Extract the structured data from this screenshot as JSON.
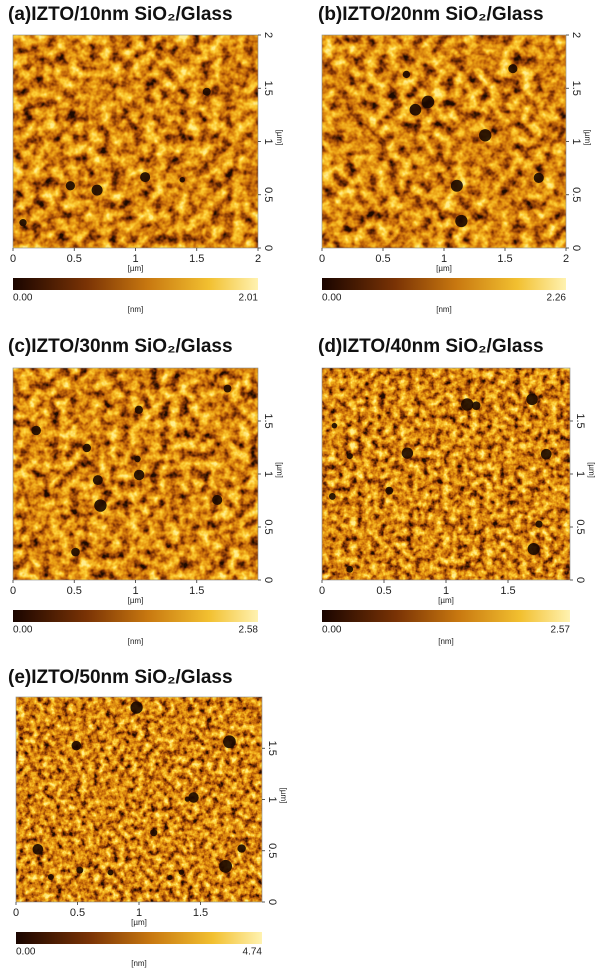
{
  "panels": [
    {
      "label": "(a)IZTO/10nm SiO₂/Glass",
      "x_ticks": [
        "0",
        "0.5",
        "1",
        "1.5",
        "2"
      ],
      "y_ticks": [
        "0",
        "0.5",
        "1",
        "1.5",
        "2"
      ],
      "x_unit": "[µm]",
      "y_unit": "[µm]",
      "colorbar_min": "0.00",
      "colorbar_max": "2.01",
      "colorbar_unit": "[nm]"
    },
    {
      "label": "(b)IZTO/20nm SiO₂/Glass",
      "x_ticks": [
        "0",
        "0.5",
        "1",
        "1.5",
        "2"
      ],
      "y_ticks": [
        "0",
        "0.5",
        "1",
        "1.5",
        "2"
      ],
      "x_unit": "[µm]",
      "y_unit": "[µm]",
      "colorbar_min": "0.00",
      "colorbar_max": "2.26",
      "colorbar_unit": "[nm]"
    },
    {
      "label": "(c)IZTO/30nm SiO₂/Glass",
      "x_ticks": [
        "0",
        "0.5",
        "1",
        "1.5"
      ],
      "y_ticks": [
        "0",
        "0.5",
        "1",
        "1.5"
      ],
      "x_unit": "[µm]",
      "y_unit": "[µm]",
      "colorbar_min": "0.00",
      "colorbar_max": "2.58",
      "colorbar_unit": "[nm]"
    },
    {
      "label": "(d)IZTO/40nm SiO₂/Glass",
      "x_ticks": [
        "0",
        "0.5",
        "1",
        "1.5"
      ],
      "y_ticks": [
        "0",
        "0.5",
        "1",
        "1.5"
      ],
      "x_unit": "[µm]",
      "y_unit": "[µm]",
      "colorbar_min": "0.00",
      "colorbar_max": "2.57",
      "colorbar_unit": "[nm]"
    },
    {
      "label": "(e)IZTO/50nm SiO₂/Glass",
      "x_ticks": [
        "0",
        "0.5",
        "1",
        "1.5"
      ],
      "y_ticks": [
        "0",
        "0.5",
        "1",
        "1.5"
      ],
      "x_unit": "[µm]",
      "y_unit": "[µm]",
      "colorbar_min": "0.00",
      "colorbar_max": "4.74",
      "colorbar_unit": "[nm]"
    }
  ]
}
